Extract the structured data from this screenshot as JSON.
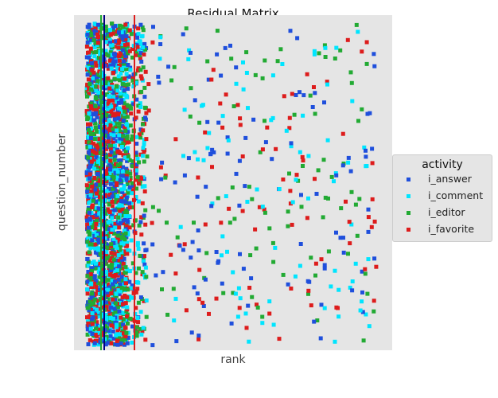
{
  "chart_data": {
    "type": "scatter",
    "title": "Residual Matrix",
    "xlabel": "rank",
    "ylabel": "question_number",
    "legend": {
      "title": "activity",
      "placement": "right",
      "entries": [
        "i_answer",
        "i_comment",
        "i_editor",
        "i_favorite"
      ]
    },
    "xlim": [
      0,
      100
    ],
    "ylim": [
      0,
      100
    ],
    "x_ticks_shown": false,
    "y_ticks_shown": false,
    "grid": false,
    "series": [
      {
        "name": "i_answer",
        "color": "#1f4fdc",
        "point_count": 700
      },
      {
        "name": "i_comment",
        "color": "#00e5ff",
        "point_count": 700
      },
      {
        "name": "i_editor",
        "color": "#22aa33",
        "point_count": 700
      },
      {
        "name": "i_favorite",
        "color": "#dd1c1c",
        "point_count": 700
      }
    ],
    "vertical_lines": [
      {
        "x": 8.5,
        "color": "#22aa33"
      },
      {
        "x": 9.5,
        "color": "#000080"
      },
      {
        "x": 19,
        "color": "#dd1c1c"
      }
    ]
  },
  "colors": {
    "plot_background": "#e5e5e5",
    "figure_background": "#ffffff"
  }
}
